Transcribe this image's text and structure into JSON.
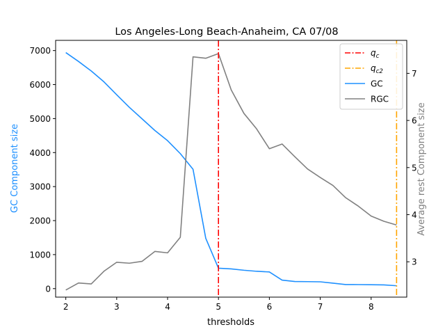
{
  "chart_data": {
    "type": "line",
    "title": "Los Angeles-Long Beach-Anaheim, CA 07/08",
    "xlabel": "thresholds",
    "ylabel_left": "GC Component size",
    "ylabel_right": "Average rest Component size",
    "xlim": [
      1.8,
      8.7
    ],
    "ylim_left": [
      -250,
      7300
    ],
    "ylim_right": [
      2.25,
      7.7
    ],
    "x_ticks": [
      2,
      3,
      4,
      5,
      6,
      7,
      8
    ],
    "y_left_ticks": [
      0,
      1000,
      2000,
      3000,
      4000,
      5000,
      6000,
      7000
    ],
    "y_right_ticks": [
      3,
      4,
      5,
      6,
      7
    ],
    "legend_position": "top-right",
    "colors": {
      "gc": "#1e90ff",
      "rgc": "#808080",
      "qc": "#ff0000",
      "qc2": "#ffa500"
    },
    "series": [
      {
        "name": "GC",
        "axis": "left",
        "x": [
          2.0,
          2.25,
          2.5,
          2.75,
          3.0,
          3.25,
          3.5,
          3.75,
          4.0,
          4.25,
          4.5,
          4.75,
          5.0,
          5.25,
          5.5,
          5.75,
          6.0,
          6.25,
          6.5,
          6.75,
          7.0,
          7.25,
          7.5,
          7.75,
          8.0,
          8.25,
          8.5
        ],
        "values": [
          6940,
          6680,
          6400,
          6080,
          5700,
          5330,
          4990,
          4650,
          4350,
          3970,
          3510,
          1480,
          600,
          580,
          540,
          510,
          490,
          250,
          210,
          205,
          200,
          160,
          120,
          118,
          115,
          110,
          85
        ]
      },
      {
        "name": "RGC",
        "axis": "right",
        "x": [
          2.0,
          2.25,
          2.5,
          2.75,
          3.0,
          3.25,
          3.5,
          3.75,
          4.0,
          4.25,
          4.5,
          4.75,
          5.0,
          5.25,
          5.5,
          5.75,
          6.0,
          6.25,
          6.5,
          6.75,
          7.0,
          7.25,
          7.5,
          7.75,
          8.0,
          8.25,
          8.5
        ],
        "values": [
          2.4,
          2.55,
          2.53,
          2.8,
          2.99,
          2.97,
          3.01,
          3.22,
          3.19,
          3.52,
          7.35,
          7.32,
          7.42,
          6.65,
          6.15,
          5.82,
          5.4,
          5.5,
          5.23,
          4.97,
          4.79,
          4.62,
          4.36,
          4.18,
          3.97,
          3.86,
          3.78
        ]
      }
    ],
    "vlines": [
      {
        "name": "q_c",
        "label_base": "q",
        "label_sub": "c",
        "x": 5.0,
        "color": "#ff0000"
      },
      {
        "name": "q_c2",
        "label_base": "q",
        "label_sub": "c2",
        "x": 8.5,
        "color": "#ffa500"
      }
    ],
    "legend": [
      {
        "label_base": "q",
        "label_sub": "c",
        "style": "dashdot",
        "color": "#ff0000"
      },
      {
        "label_base": "q",
        "label_sub": "c2",
        "style": "dashdot",
        "color": "#ffa500"
      },
      {
        "label": "GC",
        "style": "solid",
        "color": "#1e90ff"
      },
      {
        "label": "RGC",
        "style": "solid",
        "color": "#808080"
      }
    ]
  }
}
